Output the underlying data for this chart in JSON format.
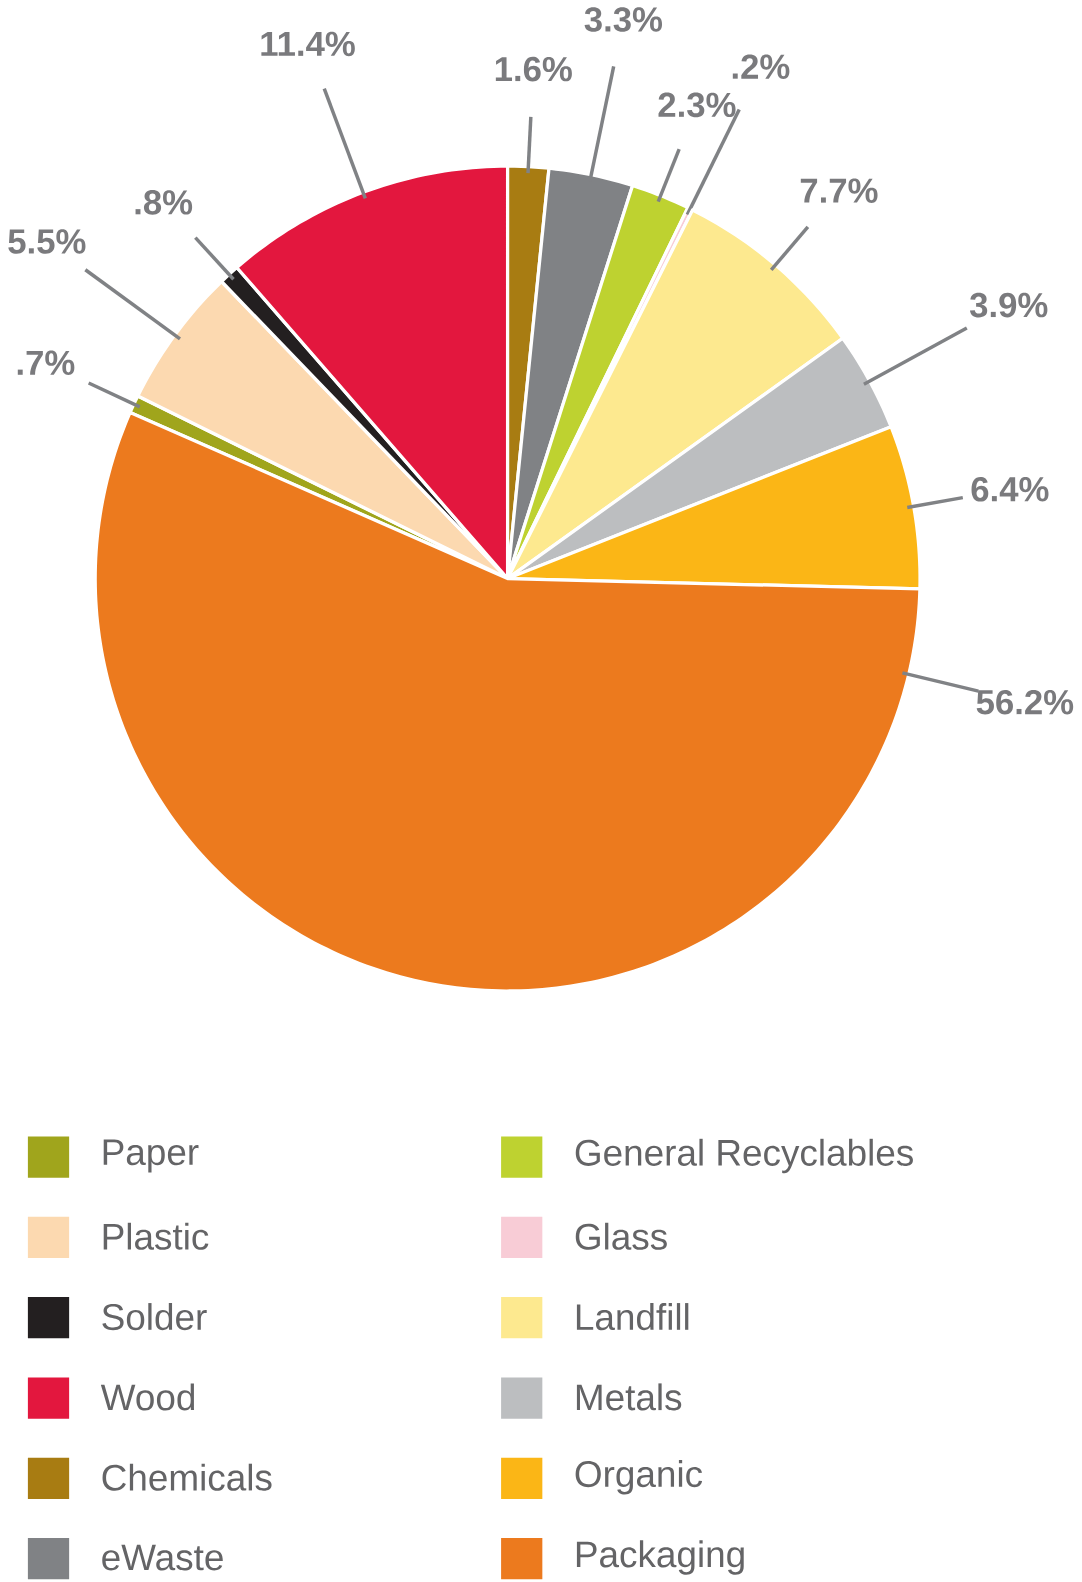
{
  "chart_data": {
    "type": "pie",
    "categories": [
      "Paper",
      "Plastic",
      "Solder",
      "Wood",
      "Chemicals",
      "eWaste",
      "General Recyclables",
      "Glass",
      "Landfill",
      "Metals",
      "Organic",
      "Packaging"
    ],
    "values": [
      0.7,
      5.5,
      0.8,
      11.4,
      1.6,
      3.3,
      2.3,
      0.2,
      7.7,
      3.9,
      6.4,
      56.2
    ],
    "colors": [
      "#a0a51c",
      "#fcd9b0",
      "#231f20",
      "#e3173e",
      "#a87c12",
      "#808285",
      "#bed230",
      "#f8ccd6",
      "#fde98f",
      "#bcbec0",
      "#fbb616",
      "#ec7a1e"
    ],
    "value_labels": [
      ".7%",
      "5.5%",
      ".8%",
      "11.4%",
      "1.6%",
      "3.3%",
      "2.3%",
      ".2%",
      "7.7%",
      "3.9%",
      "6.4%",
      "56.2%"
    ],
    "legend": "bottom"
  }
}
